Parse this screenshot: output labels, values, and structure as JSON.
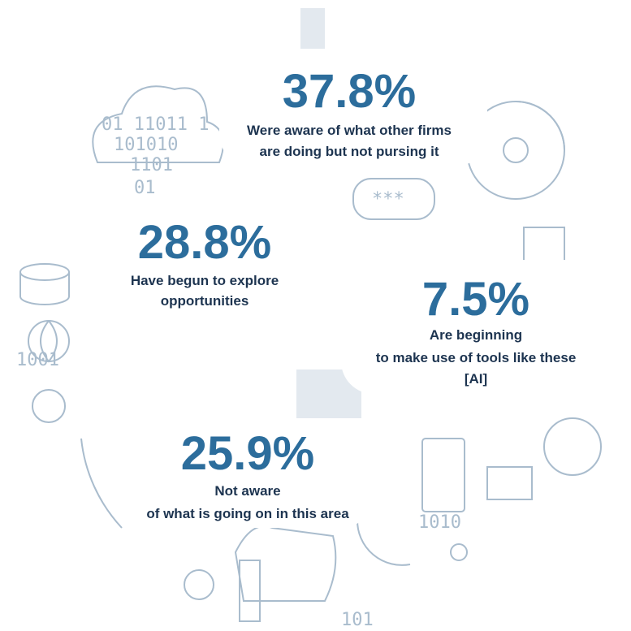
{
  "stats": [
    {
      "value": "37.8%",
      "caption": [
        "Were aware of what other firms",
        "are doing but not pursing it"
      ]
    },
    {
      "value": "28.8%",
      "caption": [
        "Have begun to explore",
        "opportunities"
      ]
    },
    {
      "value": "7.5%",
      "caption": [
        "Are beginning",
        "to make use of tools like these",
        "[AI]"
      ]
    },
    {
      "value": "25.9%",
      "caption": [
        "Not aware",
        "of what is going on in this area"
      ]
    }
  ]
}
